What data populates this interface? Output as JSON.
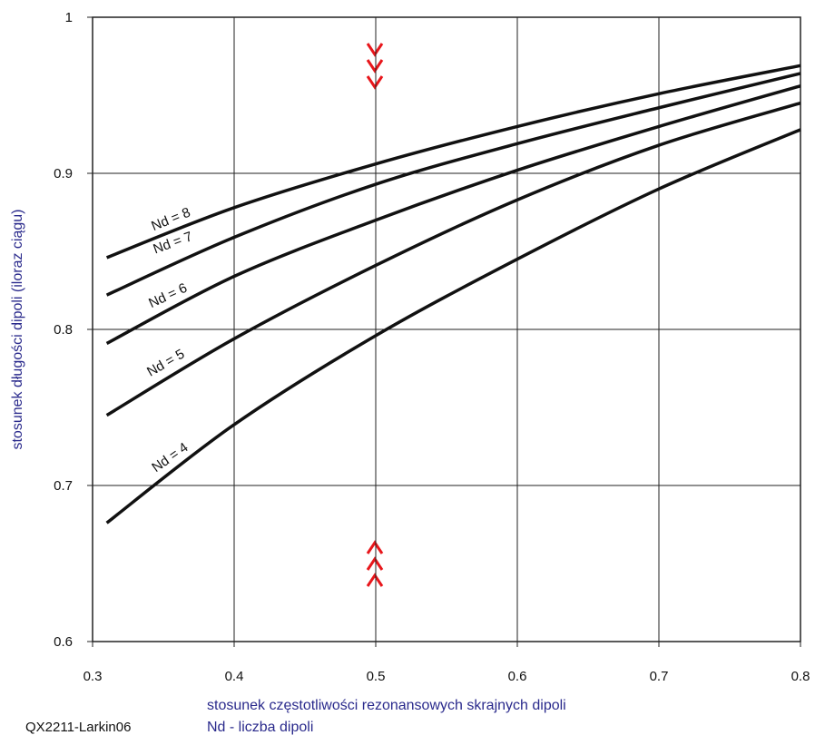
{
  "chart_data": {
    "type": "line",
    "xlabel": "stosunek częstotliwości rezonansowych skrajnych dipoli",
    "annotations": [
      "Nd - liczba dipoli",
      "QX2211-Larkin06"
    ],
    "ylabel": "stosunek długości dipoli (iloraz ciągu)",
    "x": [
      0.31,
      0.4,
      0.5,
      0.6,
      0.7,
      0.8
    ],
    "series": [
      {
        "name": "Nd = 8",
        "color": "#111111",
        "values": [
          0.846,
          0.878,
          0.906,
          0.93,
          0.951,
          0.969
        ]
      },
      {
        "name": "Nd = 7",
        "color": "#111111",
        "values": [
          0.822,
          0.859,
          0.893,
          0.919,
          0.942,
          0.964
        ]
      },
      {
        "name": "Nd = 6",
        "color": "#111111",
        "values": [
          0.791,
          0.834,
          0.87,
          0.902,
          0.93,
          0.956
        ]
      },
      {
        "name": "Nd = 5",
        "color": "#111111",
        "values": [
          0.745,
          0.794,
          0.841,
          0.883,
          0.918,
          0.945
        ]
      },
      {
        "name": "Nd = 4",
        "color": "#111111",
        "values": [
          0.676,
          0.739,
          0.796,
          0.845,
          0.89,
          0.928
        ]
      }
    ],
    "xlim": [
      0.3,
      0.8
    ],
    "xticks": [
      0.3,
      0.4,
      0.5,
      0.6,
      0.7,
      0.8
    ],
    "ylim": [
      0.6,
      1
    ],
    "yticks": [
      0.6,
      0.7,
      0.8,
      0.9,
      1
    ],
    "grid": true
  }
}
